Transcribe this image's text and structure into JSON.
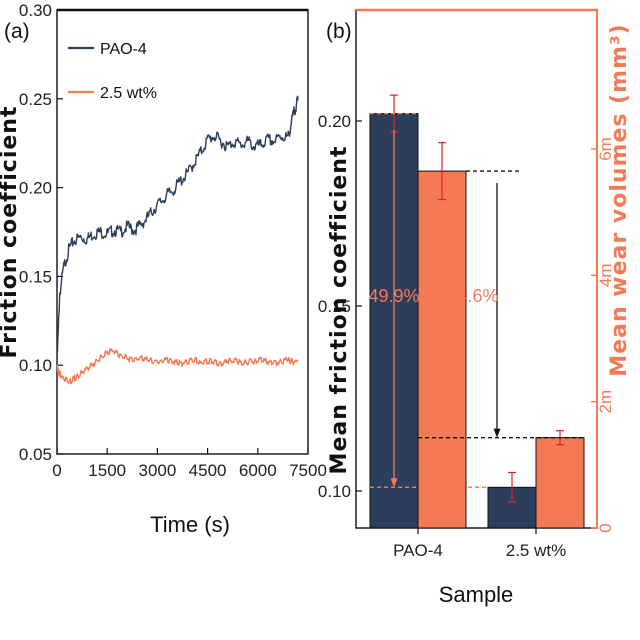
{
  "colors": {
    "navy": "#2c3e5c",
    "orange": "#f47a55",
    "errorbar": "#e02020"
  },
  "chart_data": [
    {
      "type": "line",
      "panel_label": "(a)",
      "xlabel": "Time (s)",
      "ylabel": "Friction coefficient",
      "xlim": [
        0,
        7500
      ],
      "ylim": [
        0.05,
        0.3
      ],
      "xticks": [
        "0",
        "1500",
        "3000",
        "4500",
        "6000",
        "7500"
      ],
      "yticks": [
        "0.05",
        "0.10",
        "0.15",
        "0.20",
        "0.25",
        "0.30"
      ],
      "legend_position": "top-left",
      "series": [
        {
          "name": "PAO-4",
          "color": "#2c3e5c",
          "x": [
            0,
            80,
            200,
            350,
            500,
            700,
            900,
            1100,
            1300,
            1500,
            1700,
            1900,
            2100,
            2300,
            2500,
            2700,
            2900,
            3100,
            3300,
            3500,
            3700,
            3900,
            4100,
            4300,
            4500,
            4700,
            4900,
            5100,
            5300,
            5500,
            5700,
            5900,
            6100,
            6300,
            6500,
            6700,
            6900,
            7000,
            7100,
            7200
          ],
          "y": [
            0.1,
            0.14,
            0.155,
            0.165,
            0.17,
            0.172,
            0.171,
            0.174,
            0.175,
            0.174,
            0.176,
            0.175,
            0.178,
            0.176,
            0.179,
            0.183,
            0.188,
            0.192,
            0.196,
            0.199,
            0.204,
            0.208,
            0.214,
            0.22,
            0.227,
            0.229,
            0.226,
            0.223,
            0.226,
            0.224,
            0.226,
            0.223,
            0.224,
            0.227,
            0.226,
            0.229,
            0.228,
            0.236,
            0.244,
            0.249
          ]
        },
        {
          "name": "2.5 wt%",
          "color": "#f47a55",
          "x": [
            0,
            40,
            120,
            250,
            400,
            550,
            700,
            900,
            1100,
            1300,
            1500,
            1700,
            1900,
            2100,
            2300,
            2500,
            2700,
            2900,
            3100,
            3300,
            3500,
            3700,
            3900,
            4100,
            4300,
            4500,
            4700,
            4900,
            5100,
            5300,
            5500,
            5700,
            5900,
            6100,
            6300,
            6500,
            6700,
            6900,
            7000,
            7200
          ],
          "y": [
            0.1,
            0.096,
            0.094,
            0.092,
            0.091,
            0.093,
            0.095,
            0.098,
            0.101,
            0.104,
            0.107,
            0.108,
            0.105,
            0.104,
            0.103,
            0.104,
            0.103,
            0.102,
            0.102,
            0.103,
            0.102,
            0.101,
            0.102,
            0.103,
            0.101,
            0.102,
            0.102,
            0.101,
            0.102,
            0.103,
            0.101,
            0.102,
            0.102,
            0.103,
            0.102,
            0.101,
            0.102,
            0.103,
            0.102,
            0.102
          ]
        }
      ]
    },
    {
      "type": "bar",
      "panel_label": "(b)",
      "xlabel": "Sample",
      "ylabel": "Mean friction coefficient",
      "ylabel_right": "Mean wear volumes (mm³)",
      "categories": [
        "PAO-4",
        "2.5 wt%"
      ],
      "ylim": [
        0.09,
        0.23
      ],
      "ylim_right": [
        0,
        8.2
      ],
      "yticks": [
        "0.10",
        "0.15",
        "0.20"
      ],
      "yticks_right": [
        "0",
        "2m",
        "4m",
        "6m"
      ],
      "series": [
        {
          "name": "Mean friction coefficient",
          "color": "#2c3e5c",
          "values": [
            0.202,
            0.101
          ],
          "errors": [
            0.005,
            0.004
          ],
          "axis": "left"
        },
        {
          "name": "Mean wear volumes",
          "color": "#f47a55",
          "values": [
            5.65,
            1.43
          ],
          "errors": [
            0.45,
            0.11
          ],
          "axis": "right"
        }
      ],
      "annotations": [
        "49.9%",
        "74.6%"
      ]
    }
  ]
}
